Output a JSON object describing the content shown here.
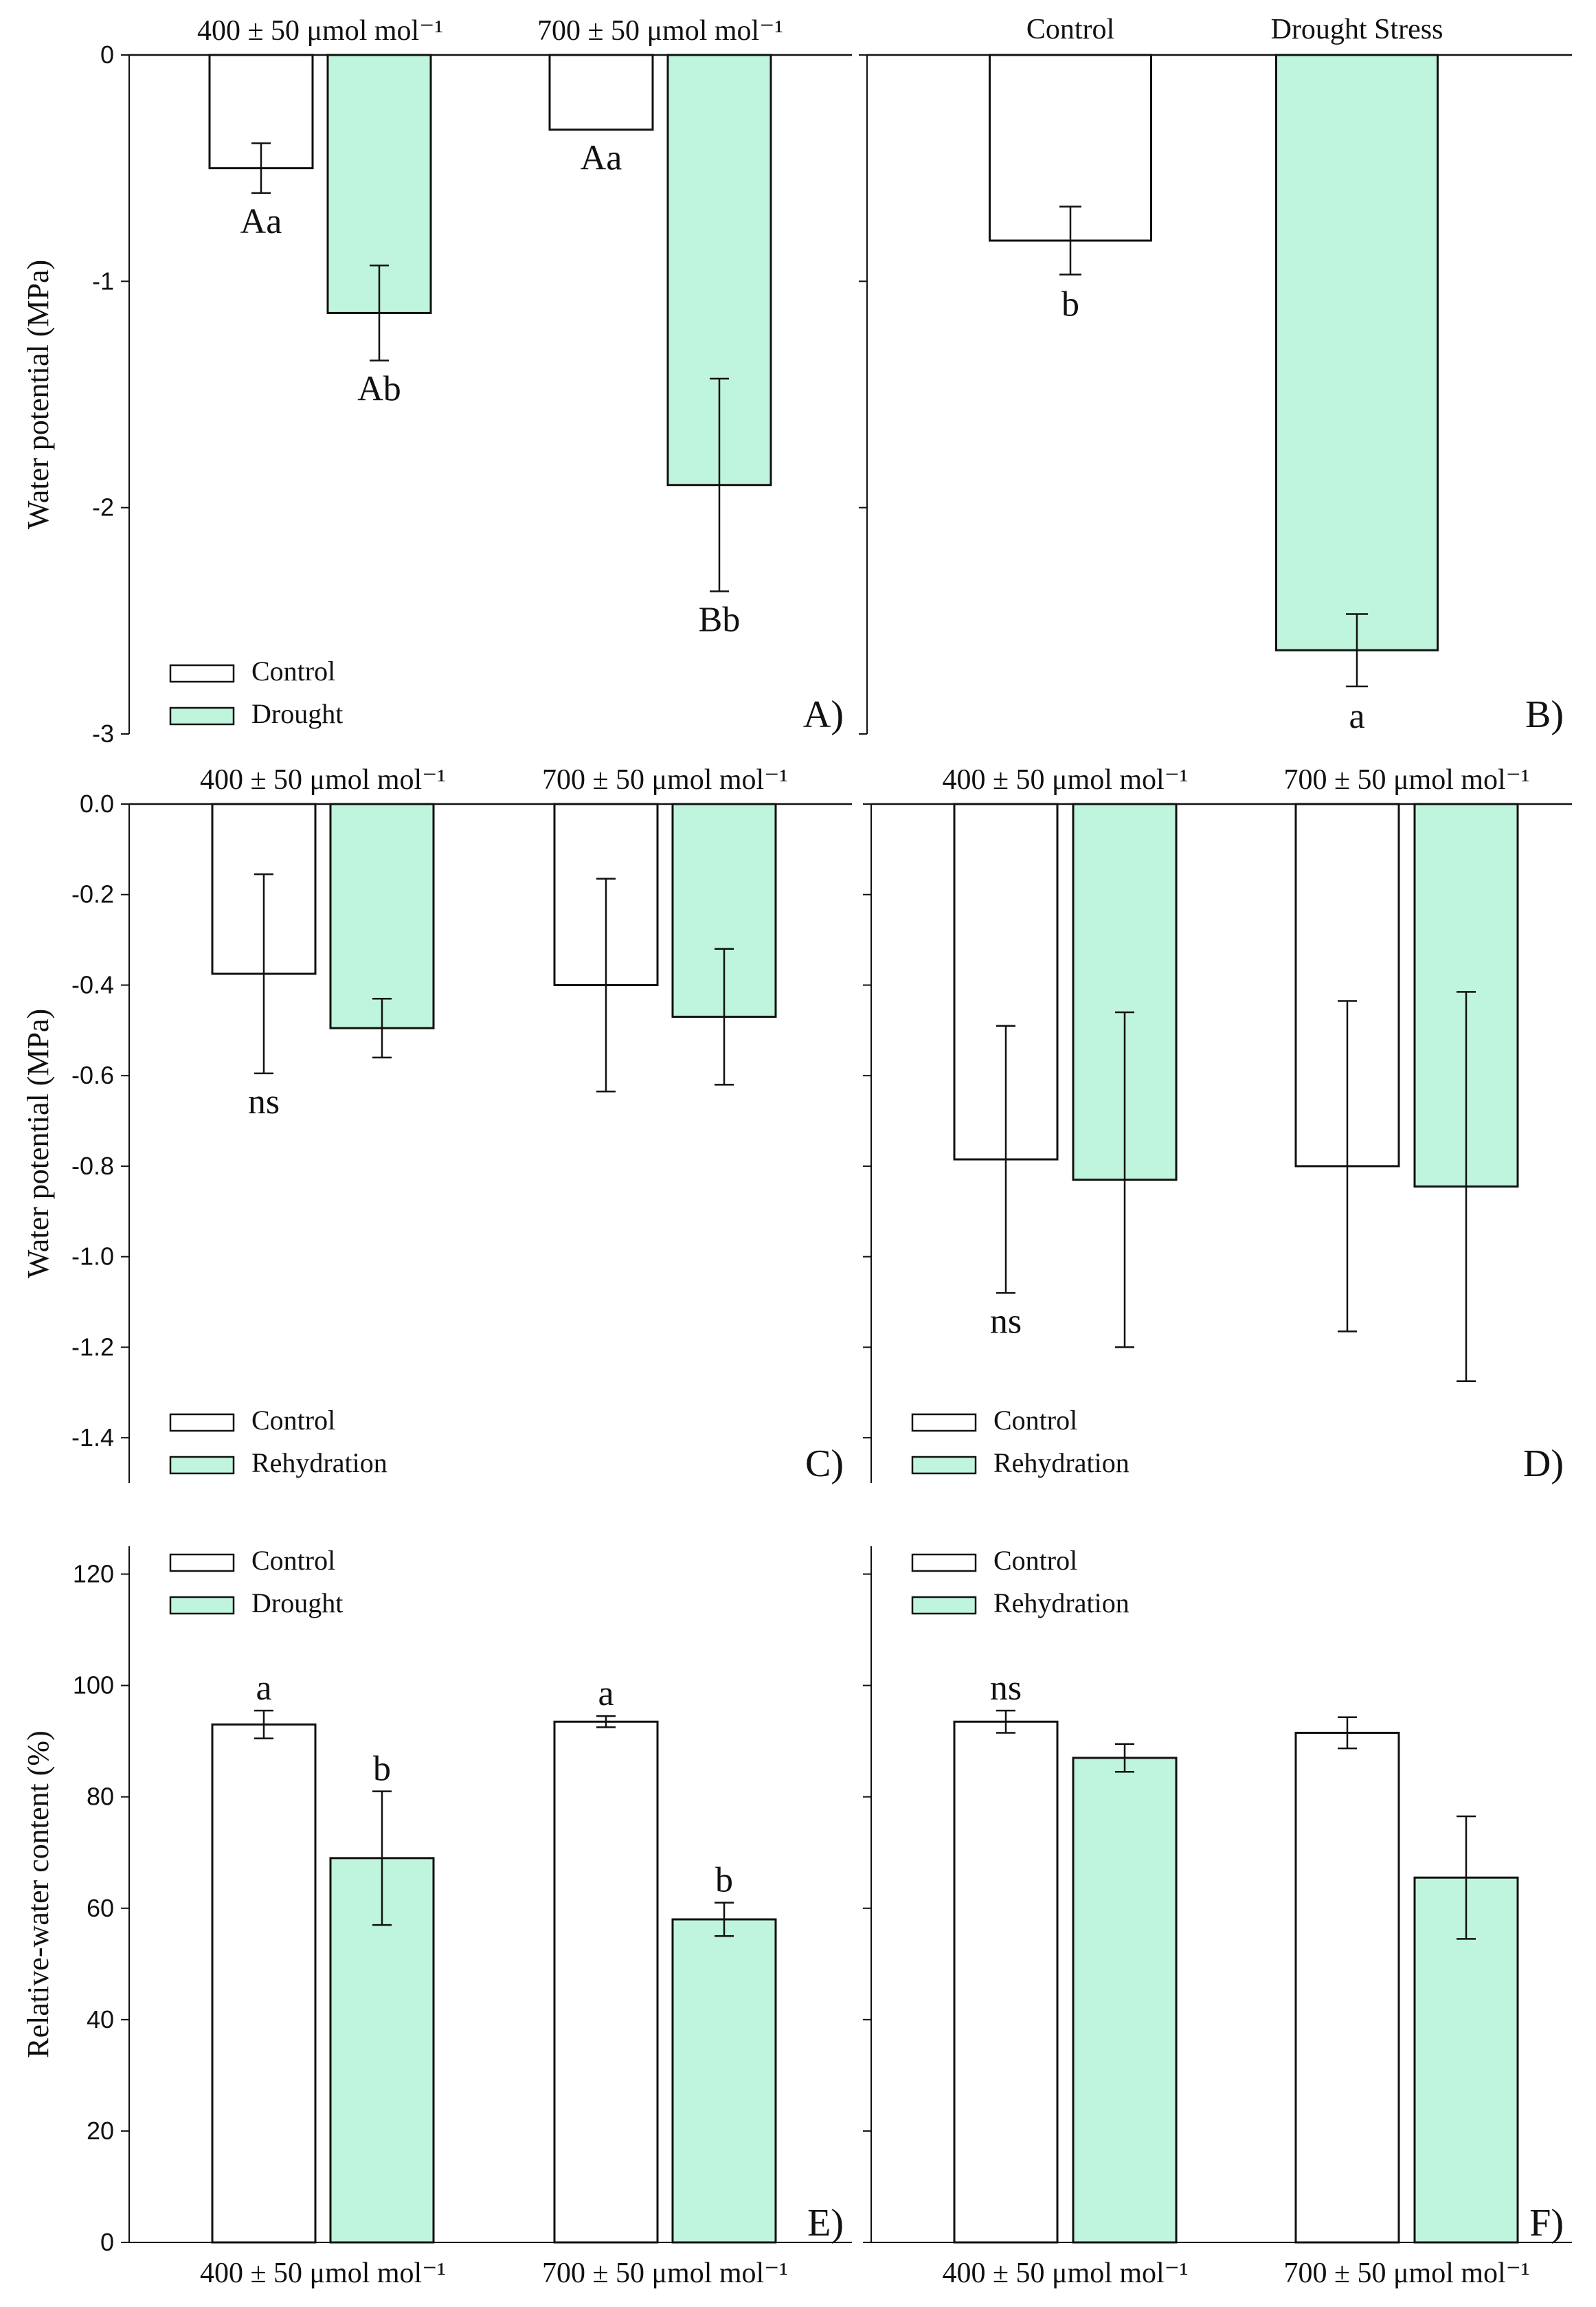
{
  "colors": {
    "control_fill": "#ffffff",
    "treatment_fill": "#bff5dc",
    "stroke": "#111111"
  },
  "chart_data": [
    {
      "id": "A",
      "type": "bar",
      "panel_label": "A)",
      "ylabel": "Water potential (MPa)",
      "ylim": [
        -3,
        0
      ],
      "yticks": [
        0,
        -1,
        -2,
        -3
      ],
      "tick_labels": [
        "0",
        "-1",
        "-2",
        "-3"
      ],
      "tick_labels_shown": true,
      "categories": [
        "400 ± 50 μmol mol⁻¹",
        "700 ± 50 μmol mol⁻¹"
      ],
      "category_label_position": "top",
      "series": [
        {
          "name": "Control",
          "fill": "control",
          "values": [
            -0.5,
            -0.33
          ],
          "errors": [
            0.11,
            0.0
          ],
          "labels": [
            "Aa",
            "Aa"
          ]
        },
        {
          "name": "Drought",
          "fill": "treatment",
          "values": [
            -1.14,
            -1.9
          ],
          "errors": [
            0.21,
            0.47
          ],
          "labels": [
            "Ab",
            "Bb"
          ]
        }
      ],
      "legend": {
        "position": "bottom-left",
        "entries": [
          "Control",
          "Drought"
        ]
      },
      "grid": false
    },
    {
      "id": "B",
      "type": "bar",
      "panel_label": "B)",
      "ylabel": "",
      "ylim": [
        -3,
        0
      ],
      "yticks": [
        0,
        -1,
        -2,
        -3
      ],
      "tick_labels": [],
      "tick_labels_shown": false,
      "categories": [
        "Control",
        "Drought Stress"
      ],
      "category_label_position": "top",
      "series": [
        {
          "name": "",
          "per_bar_fill": [
            "control",
            "treatment"
          ],
          "values": [
            -0.82,
            -2.63
          ],
          "errors": [
            0.15,
            0.16
          ],
          "labels": [
            "b",
            "a"
          ]
        }
      ],
      "legend": null,
      "grid": false
    },
    {
      "id": "C",
      "type": "bar",
      "panel_label": "C)",
      "ylabel": "Water potential  (MPa)",
      "ylim": [
        -1.5,
        0
      ],
      "yticks": [
        0,
        -0.2,
        -0.4,
        -0.6,
        -0.8,
        -1.0,
        -1.2,
        -1.4
      ],
      "tick_labels": [
        "0.0",
        "-0.2",
        "-0.4",
        "-0.6",
        "-0.8",
        "-1.0",
        "-1.2",
        "-1.4"
      ],
      "tick_labels_shown": true,
      "categories": [
        "400 ± 50 μmol mol⁻¹",
        "700 ± 50 μmol mol⁻¹"
      ],
      "category_label_position": "top",
      "series": [
        {
          "name": "Control",
          "fill": "control",
          "values": [
            -0.375,
            -0.4
          ],
          "errors": [
            0.22,
            0.235
          ],
          "labels": [
            "ns",
            ""
          ]
        },
        {
          "name": "Rehydration",
          "fill": "treatment",
          "values": [
            -0.495,
            -0.47
          ],
          "errors": [
            0.065,
            0.15
          ],
          "labels": [
            "",
            ""
          ]
        }
      ],
      "legend": {
        "position": "bottom-left",
        "entries": [
          "Control",
          "Rehydration"
        ]
      },
      "grid": false
    },
    {
      "id": "D",
      "type": "bar",
      "panel_label": "D)",
      "ylabel": "",
      "ylim": [
        -1.5,
        0
      ],
      "yticks": [
        0,
        -0.2,
        -0.4,
        -0.6,
        -0.8,
        -1.0,
        -1.2,
        -1.4
      ],
      "tick_labels": [],
      "tick_labels_shown": false,
      "categories": [
        "400 ± 50 μmol mol⁻¹",
        "700 ± 50 μmol mol⁻¹"
      ],
      "category_label_position": "top",
      "series": [
        {
          "name": "Control",
          "fill": "control",
          "values": [
            -0.785,
            -0.8
          ],
          "errors": [
            0.295,
            0.365
          ],
          "labels": [
            "ns",
            ""
          ]
        },
        {
          "name": "Rehydration",
          "fill": "treatment",
          "values": [
            -0.83,
            -0.845
          ],
          "errors": [
            0.37,
            0.43
          ],
          "labels": [
            "",
            ""
          ]
        }
      ],
      "legend": {
        "position": "bottom-left",
        "entries": [
          "Control",
          "Rehydration"
        ]
      },
      "grid": false
    },
    {
      "id": "E",
      "type": "bar",
      "panel_label": "E)",
      "ylabel": "Relative-water content (%)",
      "ylim": [
        0,
        125
      ],
      "yticks": [
        0,
        20,
        40,
        60,
        80,
        100,
        120
      ],
      "tick_labels": [
        "0",
        "20",
        "40",
        "60",
        "80",
        "100",
        "120"
      ],
      "tick_labels_shown": true,
      "categories": [
        "400 ± 50 μmol mol⁻¹",
        "700 ± 50 μmol mol⁻¹"
      ],
      "category_label_position": "bottom",
      "series": [
        {
          "name": "Control",
          "fill": "control",
          "values": [
            93,
            93.5
          ],
          "errors": [
            2.5,
            1.0
          ],
          "labels": [
            "a",
            "a"
          ]
        },
        {
          "name": "Drought",
          "fill": "treatment",
          "values": [
            69,
            58
          ],
          "errors": [
            12,
            3
          ],
          "labels": [
            "b",
            "b"
          ]
        }
      ],
      "legend": {
        "position": "top-left",
        "entries": [
          "Control",
          "Drought"
        ]
      },
      "grid": false
    },
    {
      "id": "F",
      "type": "bar",
      "panel_label": "F)",
      "ylabel": "",
      "ylim": [
        0,
        125
      ],
      "yticks": [
        0,
        20,
        40,
        60,
        80,
        100,
        120
      ],
      "tick_labels": [],
      "tick_labels_shown": false,
      "categories": [
        "400 ± 50 μmol mol⁻¹",
        "700 ± 50 μmol mol⁻¹"
      ],
      "category_label_position": "bottom",
      "series": [
        {
          "name": "Control",
          "fill": "control",
          "values": [
            93.5,
            91.5
          ],
          "errors": [
            2.0,
            2.8
          ],
          "labels": [
            "ns",
            ""
          ]
        },
        {
          "name": "Rehydration",
          "fill": "treatment",
          "values": [
            87,
            65.5
          ],
          "errors": [
            2.5,
            11
          ],
          "labels": [
            "",
            ""
          ]
        }
      ],
      "legend": {
        "position": "top-left",
        "entries": [
          "Control",
          "Rehydration"
        ]
      },
      "grid": false
    }
  ]
}
